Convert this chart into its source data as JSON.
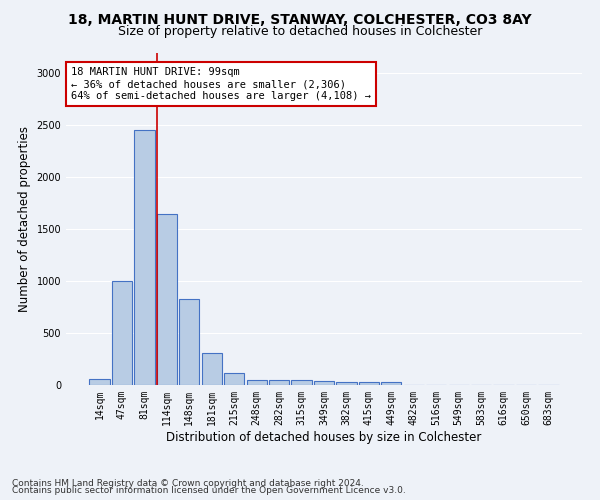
{
  "title1": "18, MARTIN HUNT DRIVE, STANWAY, COLCHESTER, CO3 8AY",
  "title2": "Size of property relative to detached houses in Colchester",
  "xlabel": "Distribution of detached houses by size in Colchester",
  "ylabel": "Number of detached properties",
  "categories": [
    "14sqm",
    "47sqm",
    "81sqm",
    "114sqm",
    "148sqm",
    "181sqm",
    "215sqm",
    "248sqm",
    "282sqm",
    "315sqm",
    "349sqm",
    "382sqm",
    "415sqm",
    "449sqm",
    "482sqm",
    "516sqm",
    "549sqm",
    "583sqm",
    "616sqm",
    "650sqm",
    "683sqm"
  ],
  "values": [
    60,
    1000,
    2450,
    1650,
    830,
    310,
    120,
    50,
    45,
    50,
    35,
    25,
    25,
    30,
    0,
    0,
    0,
    0,
    0,
    0,
    0
  ],
  "bar_color": "#b8cce4",
  "bar_edge_color": "#4472c4",
  "bar_edge_width": 0.8,
  "red_line_x": 2.55,
  "annotation_text": "18 MARTIN HUNT DRIVE: 99sqm\n← 36% of detached houses are smaller (2,306)\n64% of semi-detached houses are larger (4,108) →",
  "annotation_box_color": "#ffffff",
  "annotation_box_edge_color": "#cc0000",
  "ylim": [
    0,
    3200
  ],
  "yticks": [
    0,
    500,
    1000,
    1500,
    2000,
    2500,
    3000
  ],
  "footnote1": "Contains HM Land Registry data © Crown copyright and database right 2024.",
  "footnote2": "Contains public sector information licensed under the Open Government Licence v3.0.",
  "background_color": "#eef2f8",
  "grid_color": "#ffffff",
  "title1_fontsize": 10,
  "title2_fontsize": 9,
  "xlabel_fontsize": 8.5,
  "ylabel_fontsize": 8.5,
  "tick_fontsize": 7,
  "annotation_fontsize": 7.5,
  "footnote_fontsize": 6.5
}
